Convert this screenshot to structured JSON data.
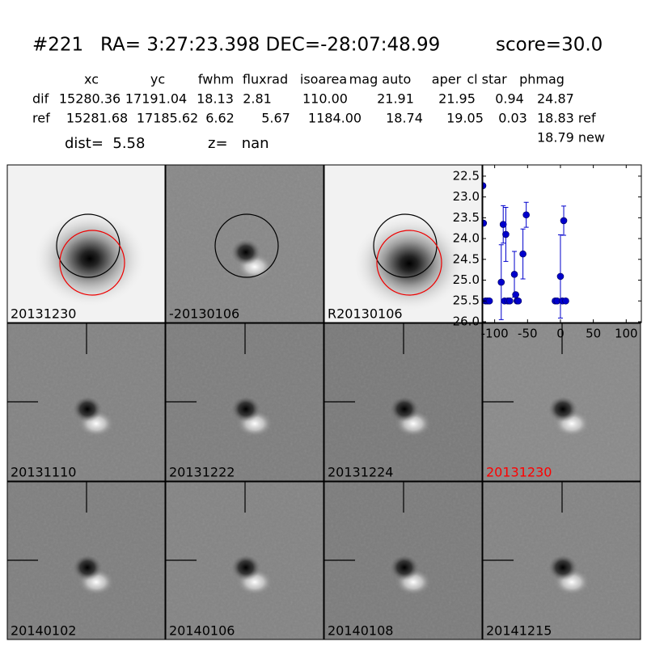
{
  "header": {
    "id": "#221",
    "coords": "RA= 3:27:23.398 DEC=-28:07:48.99",
    "score": "score=30.0"
  },
  "table": {
    "columns": [
      "xc",
      "yc",
      "fwhm",
      "fluxrad",
      "isoarea",
      "mag auto",
      "aper",
      "cl star",
      "phmag"
    ],
    "rows": [
      {
        "label": "dif",
        "cells": [
          "15280.36",
          "17191.04",
          "18.13",
          "2.81",
          "110.00",
          "21.91",
          "21.95",
          "0.94",
          "24.87"
        ]
      },
      {
        "label": "ref",
        "cells": [
          "15281.68",
          "17185.62",
          "6.62",
          "5.67",
          "1184.00",
          "18.74",
          "19.05",
          "0.03",
          "18.83 ref"
        ]
      }
    ],
    "note": "18.79 new"
  },
  "info": {
    "dist": "dist=  5.58",
    "z": "z=   nan"
  },
  "stamps": [
    {
      "label": "20131230"
    },
    {
      "label": "-20130106"
    },
    {
      "label": "R20130106"
    },
    {
      "label": "20131110"
    },
    {
      "label": "20131222"
    },
    {
      "label": "20131224"
    },
    {
      "label": "20131230",
      "color": "#ff0000"
    },
    {
      "label": "20140102"
    },
    {
      "label": "20140106"
    },
    {
      "label": "20140108"
    },
    {
      "label": "20141215"
    }
  ],
  "chart_data": {
    "type": "scatter",
    "x": [
      -118,
      -117,
      -114,
      -111,
      -108,
      -90,
      -87,
      -85,
      -83,
      -80,
      -77,
      -70,
      -68,
      -66,
      -64,
      -57,
      -52,
      -8,
      -5,
      0,
      3,
      5,
      8
    ],
    "values": [
      22.73,
      23.63,
      25.5,
      25.5,
      25.5,
      25.05,
      23.66,
      25.5,
      23.9,
      25.5,
      25.5,
      24.86,
      25.35,
      25.5,
      25.5,
      24.37,
      23.43,
      25.5,
      25.5,
      24.91,
      25.5,
      23.57,
      25.5
    ],
    "errors": [
      null,
      null,
      null,
      null,
      null,
      0.9,
      0.45,
      null,
      0.65,
      null,
      null,
      0.55,
      null,
      null,
      null,
      0.6,
      0.3,
      null,
      null,
      1.0,
      null,
      0.35,
      null
    ],
    "color": "#0000cc",
    "xlim": [
      -118,
      123
    ],
    "ylim": [
      26.02,
      22.23
    ],
    "xticks": [
      -100,
      -50,
      0,
      50,
      100
    ],
    "yticks": [
      22.5,
      {
        "value": 23,
        "label": "23.0"
      },
      23.5,
      {
        "value": 24,
        "label": "24.0"
      },
      24.5,
      {
        "value": 25,
        "label": "25.0"
      },
      25.5,
      {
        "value": 26,
        "label": "26.0"
      }
    ]
  }
}
